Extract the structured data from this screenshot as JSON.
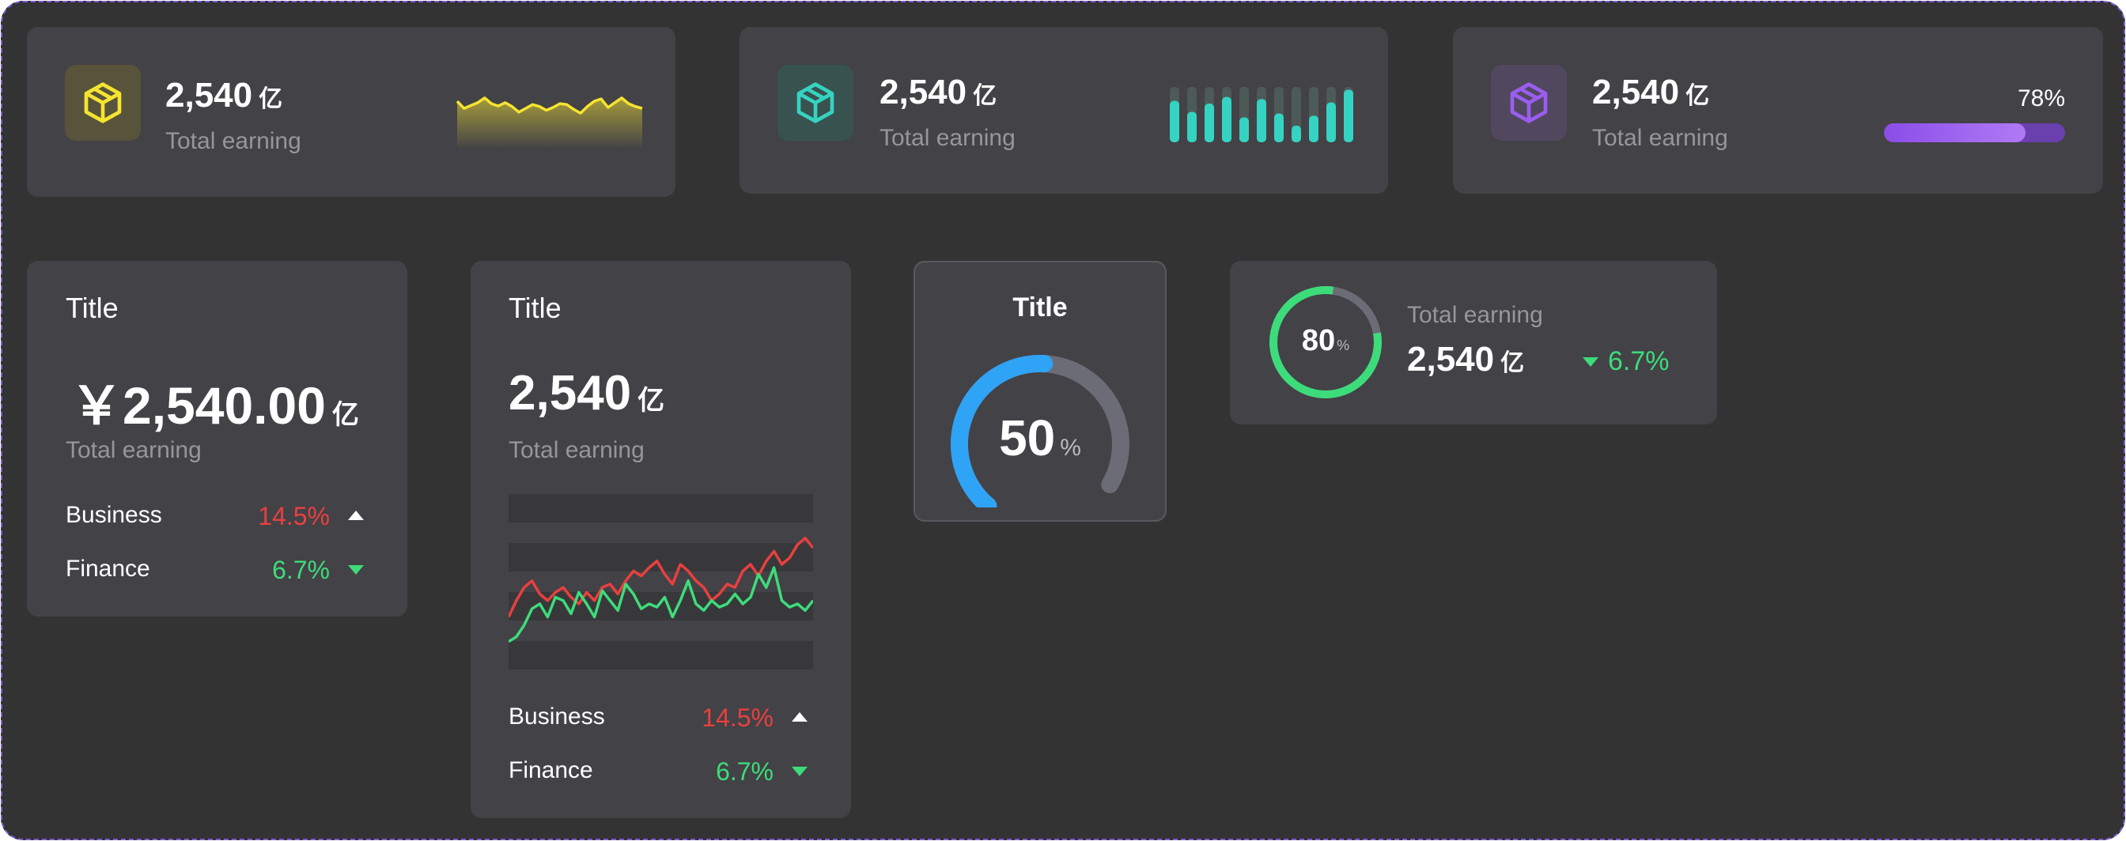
{
  "colors": {
    "yellow": "#f5e430",
    "teal": "#35d3c2",
    "purple": "#9b5df0",
    "red": "#e8403e",
    "green": "#3ddc7b",
    "blue": "#2fa3f5",
    "card": "#434246",
    "background": "#333333"
  },
  "stat_cards": [
    {
      "icon": "box-icon",
      "value": "2,540",
      "unit": "亿",
      "label": "Total earning",
      "sparkline": [
        55,
        40,
        46,
        52,
        62,
        50,
        45,
        52,
        44,
        32,
        40,
        48,
        44,
        36,
        42,
        50,
        48,
        38,
        30,
        44,
        55,
        60,
        42,
        52,
        62,
        50,
        44,
        40
      ]
    },
    {
      "icon": "box-icon",
      "value": "2,540",
      "unit": "亿",
      "label": "Total earning",
      "bars": [
        0.75,
        0.55,
        0.7,
        0.82,
        0.45,
        0.78,
        0.52,
        0.3,
        0.48,
        0.72,
        0.95
      ]
    },
    {
      "icon": "box-icon",
      "value": "2,540",
      "unit": "亿",
      "label": "Total earning",
      "progress": 0.78,
      "progress_label": "78%"
    }
  ],
  "summary_card": {
    "title": "Title",
    "amount": "￥2,540.00",
    "unit": "亿",
    "label": "Total earning",
    "rows": [
      {
        "name": "Business",
        "pct": "14.5%",
        "trend": "up"
      },
      {
        "name": "Finance",
        "pct": "6.7%",
        "trend": "down"
      }
    ]
  },
  "chart_card": {
    "title": "Title",
    "value": "2,540",
    "unit": "亿",
    "label": "Total earning",
    "rows": [
      {
        "name": "Business",
        "pct": "14.5%",
        "trend": "up"
      },
      {
        "name": "Finance",
        "pct": "6.7%",
        "trend": "down"
      }
    ]
  },
  "chart_data": {
    "type": "line",
    "title": "",
    "xlabel": "",
    "ylabel": "",
    "grid": true,
    "x": [
      1,
      2,
      3,
      4,
      5,
      6,
      7,
      8,
      9,
      10,
      11,
      12,
      13,
      14,
      15,
      16,
      17,
      18,
      19,
      20,
      21,
      22,
      23,
      24,
      25,
      26,
      27,
      28,
      29,
      30,
      31,
      32,
      33,
      34,
      35,
      36,
      37,
      38,
      39,
      40
    ],
    "ylim": [
      0,
      100
    ],
    "series": [
      {
        "name": "",
        "color": "#e8403e",
        "values": [
          30,
          40,
          48,
          52,
          44,
          40,
          45,
          48,
          42,
          38,
          45,
          40,
          48,
          50,
          44,
          52,
          58,
          55,
          60,
          64,
          56,
          50,
          62,
          58,
          52,
          48,
          40,
          44,
          50,
          48,
          58,
          62,
          55,
          64,
          70,
          62,
          66,
          74,
          78,
          72
        ]
      },
      {
        "name": "",
        "color": "#3ddc7b",
        "values": [
          15,
          18,
          25,
          35,
          38,
          30,
          42,
          40,
          32,
          45,
          38,
          30,
          46,
          40,
          34,
          50,
          44,
          35,
          38,
          36,
          42,
          30,
          40,
          52,
          38,
          34,
          40,
          36,
          38,
          44,
          38,
          42,
          56,
          48,
          60,
          40,
          36,
          38,
          34,
          40
        ]
      }
    ]
  },
  "gauge_card": {
    "title": "Title",
    "value": "50",
    "unit": "%",
    "fraction": 0.5
  },
  "ring_card": {
    "value": "80",
    "unit": "%",
    "fraction": 0.8,
    "label": "Total earning",
    "amount": "2,540",
    "amount_unit": "亿",
    "change": "6.7%",
    "trend": "down"
  }
}
